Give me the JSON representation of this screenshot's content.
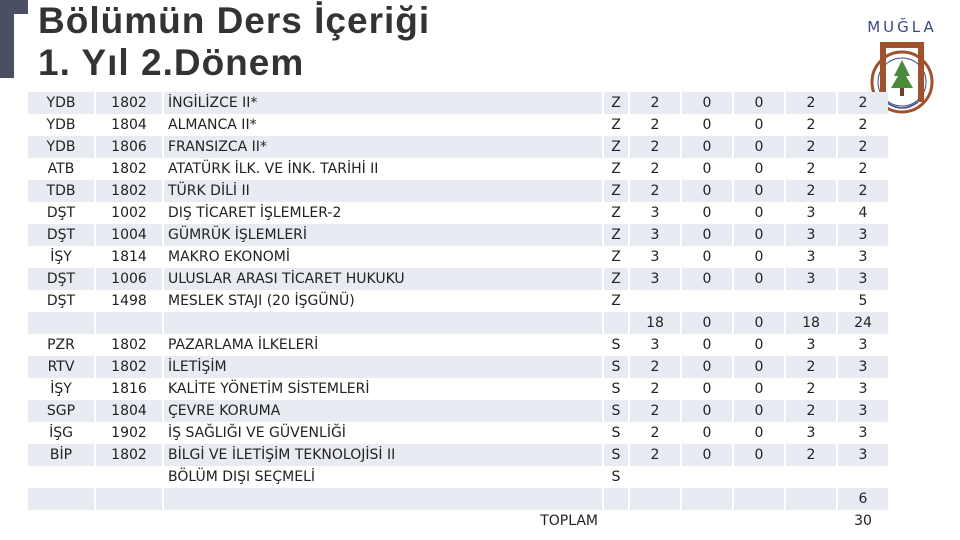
{
  "header": {
    "title_line1": "Bölümün Ders İçeriği",
    "title_line2": "1. Yıl 2.Dönem"
  },
  "logo": {
    "brand": "MUĞLA",
    "icon": "university-crest-icon"
  },
  "table": {
    "rows": [
      {
        "dept": "YDB",
        "code": "1802",
        "name": "İNGİLİZCE  II*",
        "type": "Z",
        "t": "2",
        "u": "0",
        "l": "0",
        "k": "2",
        "ects": "2"
      },
      {
        "dept": "YDB",
        "code": "1804",
        "name": "ALMANCA  II*",
        "type": "Z",
        "t": "2",
        "u": "0",
        "l": "0",
        "k": "2",
        "ects": "2"
      },
      {
        "dept": "YDB",
        "code": "1806",
        "name": "FRANSIZCA  II*",
        "type": "Z",
        "t": "2",
        "u": "0",
        "l": "0",
        "k": "2",
        "ects": "2"
      },
      {
        "dept": "ATB",
        "code": "1802",
        "name": "ATATÜRK İLK. VE İNK. TARİHİ II",
        "type": "Z",
        "t": "2",
        "u": "0",
        "l": "0",
        "k": "2",
        "ects": "2"
      },
      {
        "dept": "TDB",
        "code": "1802",
        "name": "TÜRK DİLİ II",
        "type": "Z",
        "t": "2",
        "u": "0",
        "l": "0",
        "k": "2",
        "ects": "2"
      },
      {
        "dept": "DŞT",
        "code": "1002",
        "name": "DIŞ TİCARET İŞLEMLER-2",
        "type": "Z",
        "t": "3",
        "u": "0",
        "l": "0",
        "k": "3",
        "ects": "4"
      },
      {
        "dept": "DŞT",
        "code": "1004",
        "name": "GÜMRÜK İŞLEMLERİ",
        "type": "Z",
        "t": "3",
        "u": "0",
        "l": "0",
        "k": "3",
        "ects": "3"
      },
      {
        "dept": "İŞY",
        "code": "1814",
        "name": "MAKRO EKONOMİ",
        "type": "Z",
        "t": "3",
        "u": "0",
        "l": "0",
        "k": "3",
        "ects": "3"
      },
      {
        "dept": "DŞT",
        "code": "1006",
        "name": "ULUSLAR ARASI TİCARET HUKUKU",
        "type": "Z",
        "t": "3",
        "u": "0",
        "l": "0",
        "k": "3",
        "ects": "3"
      },
      {
        "dept": "DŞT",
        "code": "1498",
        "name": "MESLEK STAJI (20 İŞGÜNÜ)",
        "type": "Z",
        "t": "",
        "u": "",
        "l": "",
        "k": "",
        "ects": "5"
      },
      {
        "dept": "",
        "code": "",
        "name": "",
        "type": "",
        "t": "18",
        "u": "0",
        "l": "0",
        "k": "18",
        "ects": "24"
      },
      {
        "dept": "PZR",
        "code": "1802",
        "name": "PAZARLAMA İLKELERİ",
        "type": "S",
        "t": "3",
        "u": "0",
        "l": "0",
        "k": "3",
        "ects": "3"
      },
      {
        "dept": "RTV",
        "code": "1802",
        "name": "İLETİŞİM",
        "type": "S",
        "t": "2",
        "u": "0",
        "l": "0",
        "k": "2",
        "ects": "3"
      },
      {
        "dept": "İŞY",
        "code": "1816",
        "name": "KALİTE YÖNETİM SİSTEMLERİ",
        "type": "S",
        "t": "2",
        "u": "0",
        "l": "0",
        "k": "2",
        "ects": "3"
      },
      {
        "dept": "SGP",
        "code": "1804",
        "name": "ÇEVRE KORUMA",
        "type": "S",
        "t": "2",
        "u": "0",
        "l": "0",
        "k": "2",
        "ects": "3"
      },
      {
        "dept": "İŞG",
        "code": "1902",
        "name": "İŞ SAĞLIĞI VE GÜVENLİĞİ",
        "type": "S",
        "t": "2",
        "u": "0",
        "l": "0",
        "k": "3",
        "ects": "3"
      },
      {
        "dept": "BİP",
        "code": "1802",
        "name": "BİLGİ VE İLETİŞİM TEKNOLOJİSİ II",
        "type": "S",
        "t": "2",
        "u": "0",
        "l": "0",
        "k": "2",
        "ects": "3"
      },
      {
        "dept": "",
        "code": "",
        "name": "BÖLÜM DIŞI SEÇMELİ",
        "type": "S",
        "t": "",
        "u": "",
        "l": "",
        "k": "",
        "ects": ""
      },
      {
        "dept": "",
        "code": "",
        "name": "",
        "type": "",
        "t": "",
        "u": "",
        "l": "",
        "k": "",
        "ects": "6"
      },
      {
        "dept": "",
        "code": "",
        "name": "TOPLAM",
        "type": "",
        "t": "",
        "u": "",
        "l": "",
        "k": "",
        "ects": "30"
      }
    ]
  }
}
